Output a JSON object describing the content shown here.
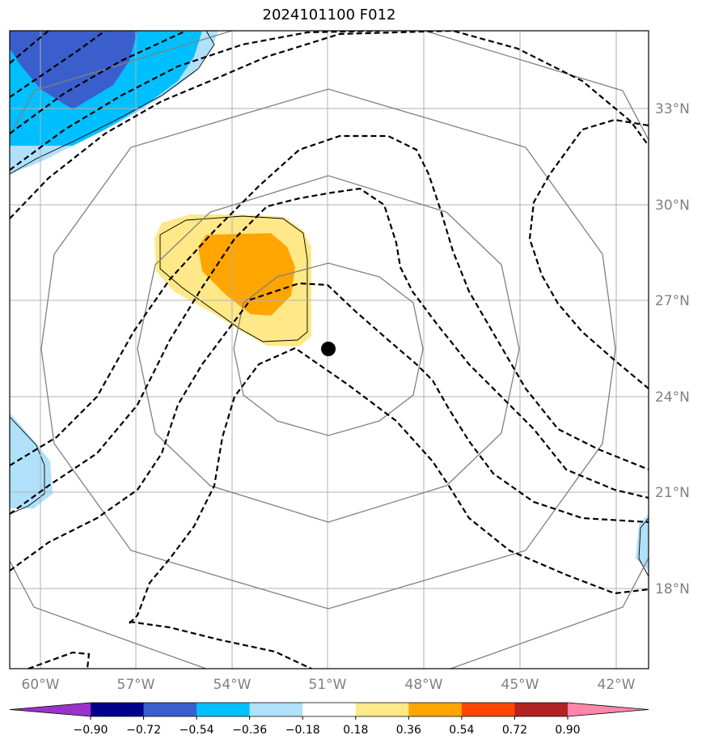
{
  "title": "2024101100 F012",
  "map": {
    "lon_ticks": [
      "60°W",
      "57°W",
      "54°W",
      "51°W",
      "48°W",
      "45°W",
      "42°W"
    ],
    "lat_ticks": [
      "33°N",
      "30°N",
      "27°N",
      "24°N",
      "21°N",
      "18°N"
    ],
    "center_marker": "storm-center",
    "gridline_color": "#b0b0b0",
    "range_ring_color": "#808080"
  },
  "colorbar": {
    "labels": [
      "−0.90",
      "−0.72",
      "−0.54",
      "−0.36",
      "−0.18",
      "0.18",
      "0.36",
      "0.54",
      "0.72",
      "0.90"
    ],
    "colors": [
      "#9933cc",
      "#00008b",
      "#3a5fcd",
      "#00bfff",
      "#b0e0fa",
      "#ffffff",
      "#ffe888",
      "#ffa500",
      "#ff4500",
      "#b22222",
      "#ff88aa"
    ]
  }
}
